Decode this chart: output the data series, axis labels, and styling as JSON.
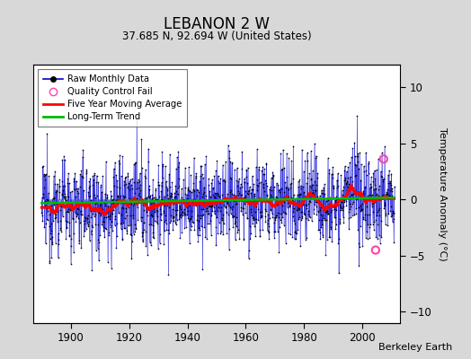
{
  "title": "LEBANON 2 W",
  "subtitle": "37.685 N, 92.694 W (United States)",
  "ylabel": "Temperature Anomaly (°C)",
  "credit": "Berkeley Earth",
  "ylim": [
    -11,
    12
  ],
  "xlim": [
    1887,
    2013
  ],
  "xticks": [
    1900,
    1920,
    1940,
    1960,
    1980,
    2000
  ],
  "yticks": [
    -10,
    -5,
    0,
    5,
    10
  ],
  "bg_color": "#d8d8d8",
  "plot_bg_color": "#ffffff",
  "grid_color": "#bbbbbb",
  "bar_color": "#7777ee",
  "line_color": "#0000cc",
  "dot_color": "#000000",
  "ma_color": "#ff0000",
  "trend_color": "#00bb00",
  "qc_color": "#ff44aa",
  "seed": 12345,
  "n_months": 1452,
  "start_year": 1890.0,
  "trend_slope": 0.004,
  "trend_intercept": -0.08,
  "ma_weight": 0.3,
  "noise_std": 2.0,
  "qc_fail_points": [
    [
      2007.25,
      3.6
    ],
    [
      2004.5,
      -4.5
    ]
  ],
  "ma_window": 60
}
